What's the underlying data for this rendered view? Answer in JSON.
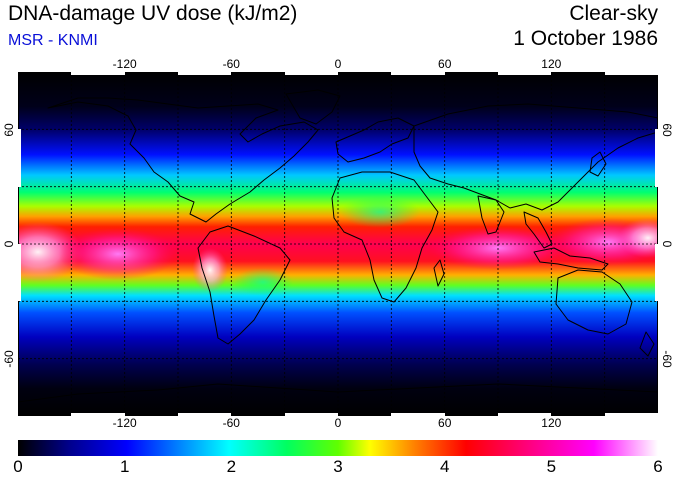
{
  "header": {
    "title": "DNA-damage UV dose (kJ/m2)",
    "source": "MSR - KNMI",
    "condition": "Clear-sky",
    "date": "1 October 1986"
  },
  "map": {
    "projection": "equirectangular",
    "lon_range": [
      -180,
      180
    ],
    "lat_range": [
      -90,
      90
    ],
    "lon_ticks": [
      -120,
      -60,
      0,
      60,
      120
    ],
    "lat_ticks": [
      60,
      0,
      -60
    ],
    "lon_tick_labels": [
      "-120",
      "-60",
      "0",
      "60",
      "120"
    ],
    "lat_tick_labels": [
      "60",
      "0",
      "-60"
    ],
    "gridlines": "dashed, every 30 degrees",
    "coastlines": "black outlines",
    "field": "UV dose, maximum in tropics near equator, decreasing toward poles"
  },
  "colorbar": {
    "min": 0,
    "max": 6,
    "labels": [
      "0",
      "1",
      "2",
      "3",
      "4",
      "5",
      "6"
    ],
    "colors": [
      "#000000",
      "#00008c",
      "#0000ff",
      "#00c8ff",
      "#00ffff",
      "#00ff00",
      "#ffff00",
      "#ff8000",
      "#ff0000",
      "#ff0080",
      "#ff00ff",
      "#ffffff"
    ]
  }
}
